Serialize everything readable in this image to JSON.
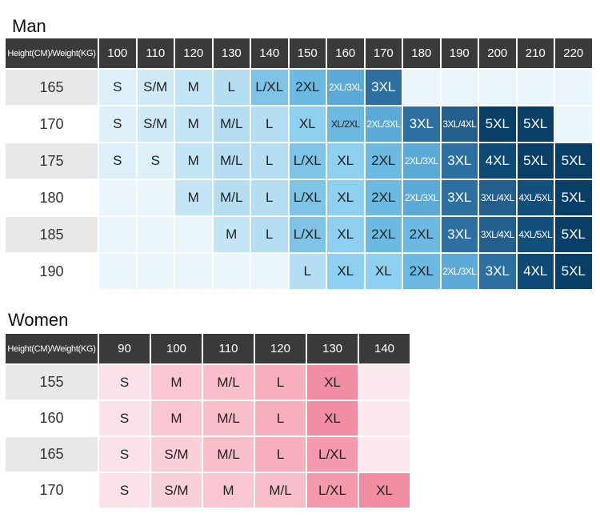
{
  "man": {
    "title": "Man",
    "corner_label": "Height(CM)/Weight(KG)",
    "weights": [
      "100",
      "110",
      "120",
      "130",
      "140",
      "150",
      "160",
      "170",
      "180",
      "190",
      "200",
      "210",
      "220"
    ],
    "rows": [
      {
        "height": "165",
        "cells": [
          "S",
          "S/M",
          "M",
          "L",
          "L/XL",
          "2XL",
          "2XL/3XL",
          "3XL",
          "",
          "",
          "",
          "",
          ""
        ]
      },
      {
        "height": "170",
        "cells": [
          "S",
          "S/M",
          "M",
          "M/L",
          "L",
          "XL",
          "XL/2XL",
          "2XL/3XL",
          "3XL",
          "3XL/4XL",
          "5XL",
          "5XL",
          ""
        ]
      },
      {
        "height": "175",
        "cells": [
          "S",
          "S",
          "M",
          "M/L",
          "L",
          "L/XL",
          "XL",
          "2XL",
          "2XL/3XL",
          "3XL",
          "4XL",
          "5XL",
          "5XL"
        ]
      },
      {
        "height": "180",
        "cells": [
          "",
          "",
          "M",
          "M/L",
          "L",
          "L/XL",
          "XL",
          "2XL",
          "2XL/3XL",
          "3XL",
          "3XL/4XL",
          "4XL/5XL",
          "5XL"
        ]
      },
      {
        "height": "185",
        "cells": [
          "",
          "",
          "",
          "M",
          "L",
          "L/XL",
          "XL",
          "2XL",
          "2XL",
          "3XL",
          "3XL/4XL",
          "4XL/5XL",
          "5XL"
        ]
      },
      {
        "height": "190",
        "cells": [
          "",
          "",
          "",
          "",
          "",
          "L",
          "XL",
          "XL",
          "2XL",
          "2XL/3XL",
          "3XL",
          "4XL",
          "5XL"
        ]
      }
    ]
  },
  "women": {
    "title": "Women",
    "corner_label": "Height(CM)/Weight(KG)",
    "weights": [
      "90",
      "100",
      "110",
      "120",
      "130",
      "140"
    ],
    "rows": [
      {
        "height": "155",
        "cells": [
          "S",
          "M",
          "M/L",
          "L",
          "XL",
          ""
        ]
      },
      {
        "height": "160",
        "cells": [
          "S",
          "M",
          "M/L",
          "L",
          "XL",
          ""
        ]
      },
      {
        "height": "165",
        "cells": [
          "S",
          "S/M",
          "M/L",
          "L",
          "L/XL",
          ""
        ]
      },
      {
        "height": "170",
        "cells": [
          "S",
          "S/M",
          "M",
          "M/L",
          "L/XL",
          "XL"
        ]
      }
    ]
  },
  "colors": {
    "header_bg": "#3a3a3a",
    "height_alt_a": "#e8e8e8",
    "height_alt_b": "#ffffff",
    "man_palette": {
      "S": "#ddf0fa",
      "S/M": "#cfe9f7",
      "M": "#c4e5f6",
      "L": "#b6def3",
      "M/L": "#b6def3",
      "L/XL": "#7fc3e6",
      "2XL": "#6cb9e2",
      "XL": "#8fd0f0",
      "2XL/3XL": "#5aa9d6",
      "XL/2XL": "#6cb9e2",
      "3XL": "#2d6fa0",
      "3XL/4XL": "#235f8d",
      "4XL": "#0f4a76",
      "4XL/5XL": "#134f7d",
      "5XL": "#093f66",
      "empty": "#eaf6fc"
    },
    "women_palette": {
      "S": "#fbe1e8",
      "S/M": "#f9d0da",
      "M": "#f9c6d1",
      "M/L": "#f8bfcb",
      "L": "#f7aebd",
      "L/XL": "#f49aac",
      "XL": "#f28ea3",
      "empty": "#fce9ee"
    }
  }
}
